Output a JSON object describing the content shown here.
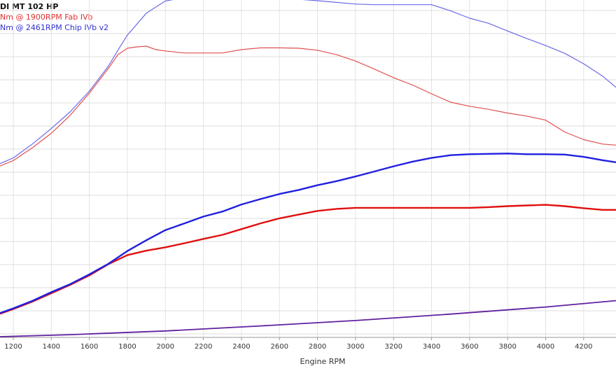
{
  "legend": {
    "title": "DI MT 102 HP",
    "line1": "Nm @ 1900RPM  Fab IVb",
    "line2": "Nm @ 2461RPM  Chip IVb v2"
  },
  "chart_data": {
    "type": "line",
    "title": "DI MT 102 HP",
    "xlabel": "Engine RPM",
    "ylabel": "",
    "xlim": [
      1130,
      4370
    ],
    "ylim": [
      0,
      100
    ],
    "grid": "vertical",
    "x_ticks": [
      1200,
      1400,
      1600,
      1800,
      2000,
      2200,
      2400,
      2600,
      2800,
      3000,
      3200,
      3400,
      3600,
      3800,
      4000,
      4200
    ],
    "legend_position": "top-left",
    "series": [
      {
        "name": "Fab IVb",
        "kind": "torque",
        "color": "#e05050",
        "x": [
          1130,
          1200,
          1300,
          1400,
          1500,
          1600,
          1700,
          1750,
          1800,
          1850,
          1900,
          1950,
          2000,
          2100,
          2200,
          2300,
          2400,
          2500,
          2600,
          2700,
          2800,
          2900,
          3000,
          3100,
          3200,
          3300,
          3400,
          3500,
          3600,
          3700,
          3800,
          3900,
          4000,
          4100,
          4200,
          4300,
          4370
        ],
        "values": [
          50.8,
          52.4,
          56.2,
          60.5,
          65.9,
          72.4,
          79.7,
          83.8,
          85.7,
          86.1,
          86.3,
          85.3,
          84.9,
          84.3,
          84.3,
          84.3,
          85.3,
          85.8,
          85.8,
          85.7,
          85.1,
          83.8,
          81.9,
          79.5,
          77.0,
          74.8,
          72.2,
          69.7,
          68.5,
          67.6,
          66.5,
          65.6,
          64.4,
          60.9,
          58.6,
          57.3,
          57.0
        ]
      },
      {
        "name": "Chip IVb v2",
        "kind": "torque",
        "color": "#6a6ae8",
        "x": [
          1130,
          1200,
          1300,
          1400,
          1500,
          1600,
          1700,
          1750,
          1800,
          1900,
          2000,
          2100,
          2200,
          2300,
          2400,
          2500,
          2600,
          2700,
          2800,
          2900,
          3000,
          3100,
          3200,
          3300,
          3400,
          3500,
          3600,
          3700,
          3800,
          3900,
          4000,
          4100,
          4200,
          4300,
          4370
        ],
        "values": [
          51.5,
          53.2,
          57.3,
          61.9,
          66.9,
          73.0,
          80.4,
          85.1,
          89.6,
          96.1,
          99.7,
          100.7,
          101.0,
          101.0,
          101.4,
          101.2,
          100.9,
          100.2,
          99.8,
          99.3,
          98.8,
          98.6,
          98.6,
          98.6,
          98.6,
          96.8,
          94.6,
          93.1,
          90.8,
          88.6,
          86.5,
          84.2,
          81.1,
          77.4,
          74.1
        ]
      },
      {
        "name": "Fab IVb",
        "kind": "power",
        "color": "#e01010",
        "x": [
          1130,
          1200,
          1300,
          1400,
          1500,
          1600,
          1700,
          1800,
          1900,
          2000,
          2100,
          2200,
          2300,
          2400,
          2500,
          2600,
          2700,
          2800,
          2900,
          3000,
          3100,
          3200,
          3300,
          3400,
          3500,
          3600,
          3700,
          3800,
          3900,
          4000,
          4100,
          4200,
          4300,
          4370
        ],
        "values": [
          7.0,
          8.4,
          10.6,
          13.1,
          15.6,
          18.4,
          21.7,
          24.4,
          25.7,
          26.7,
          27.9,
          29.2,
          30.4,
          32.1,
          33.8,
          35.3,
          36.4,
          37.5,
          38.1,
          38.4,
          38.4,
          38.4,
          38.4,
          38.4,
          38.4,
          38.4,
          38.6,
          38.9,
          39.1,
          39.3,
          38.9,
          38.3,
          37.8,
          37.8
        ]
      },
      {
        "name": "Chip IVb v2",
        "kind": "power",
        "color": "#2020e0",
        "x": [
          1130,
          1200,
          1300,
          1400,
          1500,
          1600,
          1700,
          1800,
          1900,
          2000,
          2100,
          2200,
          2300,
          2400,
          2500,
          2600,
          2700,
          2800,
          2900,
          3000,
          3100,
          3200,
          3300,
          3400,
          3500,
          3600,
          3700,
          3800,
          3900,
          4000,
          4100,
          4200,
          4300,
          4370
        ],
        "values": [
          7.2,
          8.6,
          10.8,
          13.4,
          15.8,
          18.7,
          21.8,
          25.6,
          28.8,
          31.8,
          33.8,
          35.8,
          37.3,
          39.4,
          41.0,
          42.5,
          43.7,
          45.1,
          46.3,
          47.7,
          49.2,
          50.7,
          52.1,
          53.2,
          54.0,
          54.3,
          54.4,
          54.5,
          54.3,
          54.3,
          54.2,
          53.5,
          52.5,
          51.9
        ]
      },
      {
        "name": "",
        "kind": "loss",
        "color": "#6020a0",
        "x": [
          1130,
          1500,
          2000,
          2500,
          3000,
          3500,
          4000,
          4370
        ],
        "values": [
          0.2,
          0.8,
          1.9,
          3.4,
          5.0,
          6.9,
          9.0,
          10.9
        ]
      }
    ]
  }
}
